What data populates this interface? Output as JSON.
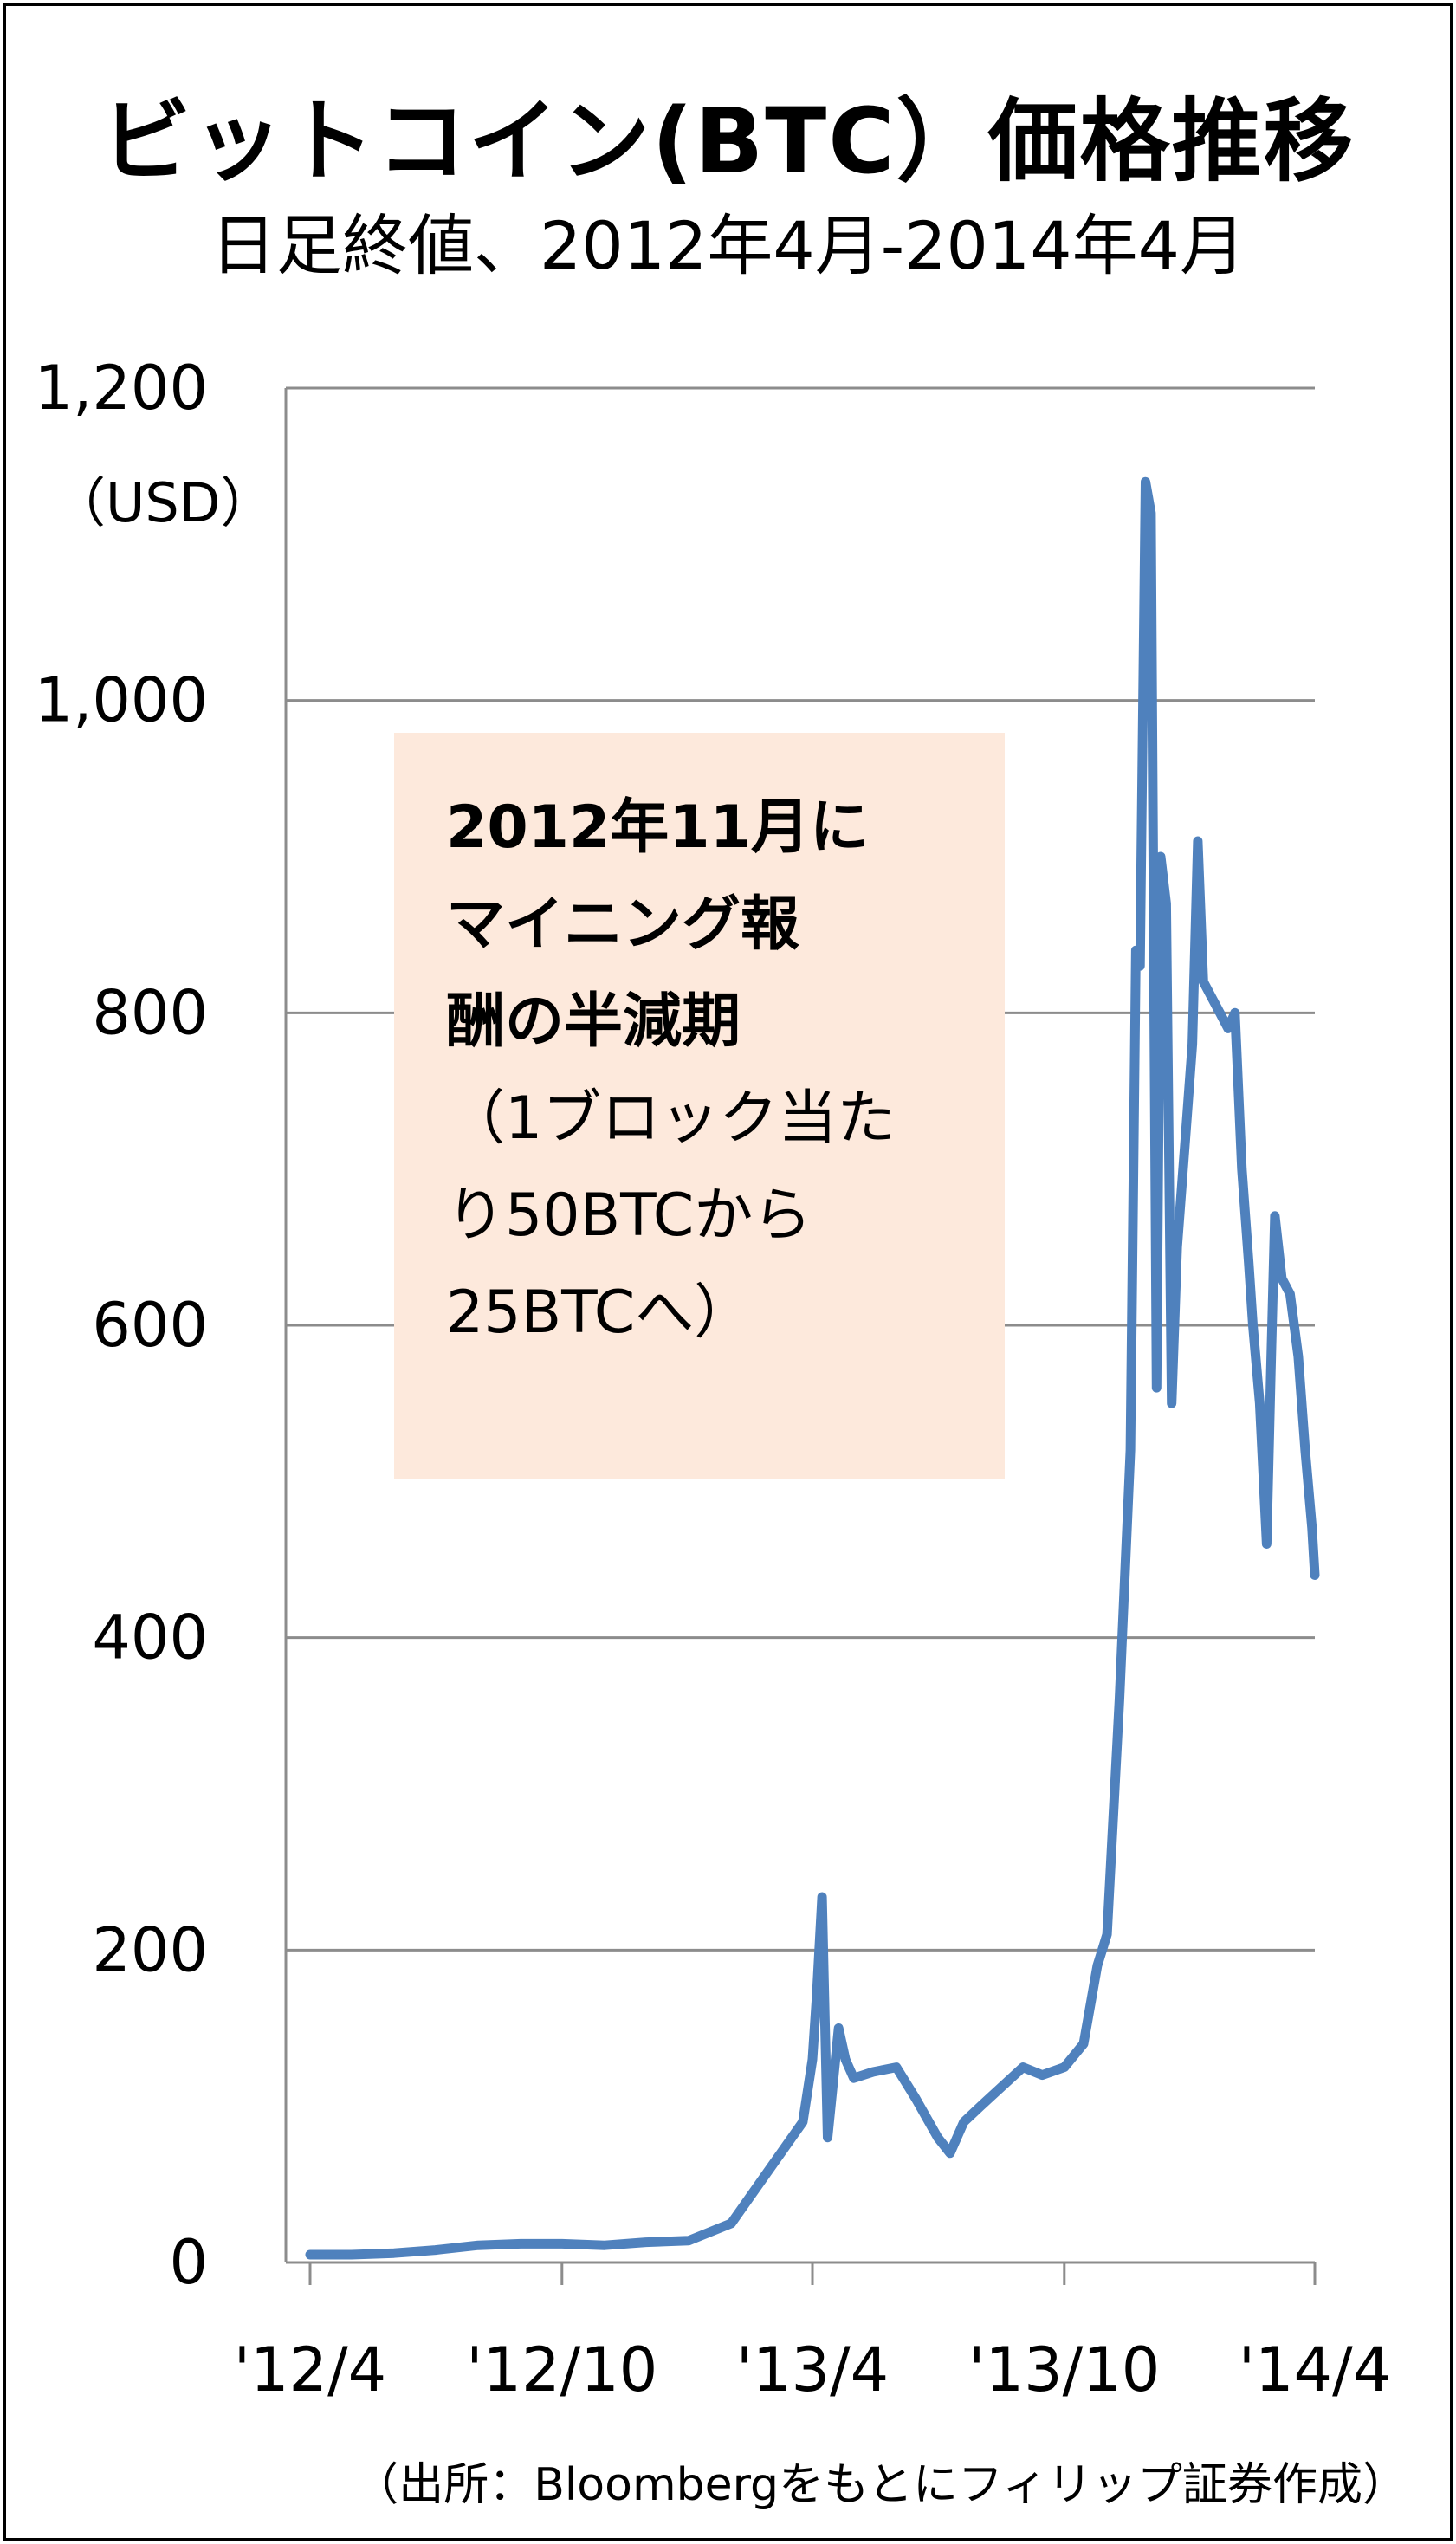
{
  "chart_data": {
    "type": "line",
    "title": "ビットコイン(BTC）価格推移",
    "subtitle": "日足終値、2012年4月-2014年4月",
    "ylabel": "（USD）",
    "ylim": [
      0,
      1200
    ],
    "yticks": [
      "0",
      "200",
      "400",
      "600",
      "800",
      "1,000",
      "1,200"
    ],
    "ytick_values": [
      0,
      200,
      400,
      600,
      800,
      1000,
      1200
    ],
    "xticks": [
      "'12/4",
      "'12/10",
      "'13/4",
      "'13/10",
      "'14/4"
    ],
    "xtick_values": [
      "2012-04",
      "2012-10",
      "2013-04",
      "2013-10",
      "2014-04"
    ],
    "grid": true,
    "line_color": "#4f81bd",
    "series": [
      {
        "name": "",
        "points": [
          [
            "2012-04",
            5
          ],
          [
            "2012-05",
            5
          ],
          [
            "2012-06",
            6
          ],
          [
            "2012-07",
            8
          ],
          [
            "2012-08",
            11
          ],
          [
            "2012-09",
            12
          ],
          [
            "2012-10",
            12
          ],
          [
            "2012-11",
            11
          ],
          [
            "2012-12",
            13
          ],
          [
            "2013-01",
            14
          ],
          [
            "2013-02",
            25
          ],
          [
            "2013-03",
            60
          ],
          [
            "2013-03-25",
            90
          ],
          [
            "2013-04-01",
            130
          ],
          [
            "2013-04-04",
            170
          ],
          [
            "2013-04-08",
            234
          ],
          [
            "2013-04-12",
            80
          ],
          [
            "2013-04-20",
            150
          ],
          [
            "2013-04-25",
            130
          ],
          [
            "2013-05",
            118
          ],
          [
            "2013-05-15",
            122
          ],
          [
            "2013-06",
            125
          ],
          [
            "2013-06-15",
            105
          ],
          [
            "2013-07",
            80
          ],
          [
            "2013-07-10",
            70
          ],
          [
            "2013-07-20",
            90
          ],
          [
            "2013-08",
            100
          ],
          [
            "2013-09",
            125
          ],
          [
            "2013-09-15",
            120
          ],
          [
            "2013-10",
            125
          ],
          [
            "2013-10-15",
            140
          ],
          [
            "2013-10-25",
            190
          ],
          [
            "2013-11-01",
            210
          ],
          [
            "2013-11-10",
            360
          ],
          [
            "2013-11-18",
            520
          ],
          [
            "2013-11-22",
            840
          ],
          [
            "2013-11-25",
            830
          ],
          [
            "2013-11-29",
            1140
          ],
          [
            "2013-12-03",
            1120
          ],
          [
            "2013-12-07",
            560
          ],
          [
            "2013-12-10",
            900
          ],
          [
            "2013-12-14",
            870
          ],
          [
            "2013-12-18",
            550
          ],
          [
            "2013-12-22",
            650
          ],
          [
            "2013-12-28",
            720
          ],
          [
            "2014-01-02",
            780
          ],
          [
            "2014-01-06",
            910
          ],
          [
            "2014-01-10",
            820
          ],
          [
            "2014-01-16",
            810
          ],
          [
            "2014-01-22",
            800
          ],
          [
            "2014-01-28",
            790
          ],
          [
            "2014-02-02",
            800
          ],
          [
            "2014-02-07",
            700
          ],
          [
            "2014-02-12",
            640
          ],
          [
            "2014-02-15",
            600
          ],
          [
            "2014-02-20",
            550
          ],
          [
            "2014-02-25",
            460
          ],
          [
            "2014-02-28",
            570
          ],
          [
            "2014-03-03",
            670
          ],
          [
            "2014-03-08",
            630
          ],
          [
            "2014-03-14",
            620
          ],
          [
            "2014-03-20",
            580
          ],
          [
            "2014-03-25",
            520
          ],
          [
            "2014-03-30",
            470
          ],
          [
            "2014-04-01",
            440
          ]
        ]
      }
    ]
  },
  "annotation": {
    "bold_lines": "2012年11月に\nマイニング報\n酬の半減期",
    "normal_lines": "（1ブロック当た\nり50BTCから\n25BTCへ）"
  },
  "source": "（出所：Bloombergをもとにフィリップ証券作成）"
}
